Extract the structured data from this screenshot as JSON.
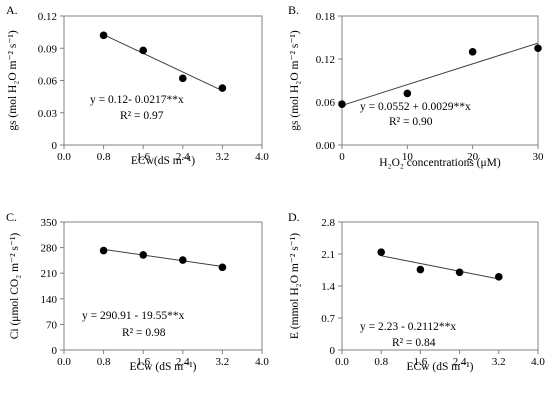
{
  "chart_data": [
    {
      "type": "scatter",
      "panel_label": "A.",
      "xlabel": "ECw(dS m⁻¹)",
      "ylabel": "gs (mol H₂O m⁻² s⁻¹)",
      "x": [
        0.8,
        1.6,
        2.4,
        3.2
      ],
      "y": [
        0.102,
        0.088,
        0.062,
        0.053
      ],
      "xlim": [
        0,
        4.0
      ],
      "ylim": [
        0,
        0.12
      ],
      "xticks": [
        "0.0",
        "0.8",
        "1.6",
        "2.4",
        "3.2",
        "4.0"
      ],
      "yticks": [
        "0",
        "0.03",
        "0.06",
        "0.09",
        "0.12"
      ],
      "trendline": {
        "intercept": 0.12,
        "slope": -0.0217
      },
      "equation": "y = 0.12- 0.0217**x",
      "r2": "R² = 0.97",
      "grid": false
    },
    {
      "type": "scatter",
      "panel_label": "B.",
      "xlabel": "H₂O₂ concentrations (μM)",
      "ylabel": "gs (mol H₂O m⁻² s⁻¹)",
      "x": [
        0,
        10,
        20,
        30
      ],
      "y": [
        0.057,
        0.072,
        0.13,
        0.135
      ],
      "xlim": [
        0,
        30
      ],
      "ylim": [
        0,
        0.18
      ],
      "xticks": [
        "0",
        "10",
        "20",
        "30"
      ],
      "yticks": [
        "0.00",
        "0.06",
        "0.12",
        "0.18"
      ],
      "trendline": {
        "intercept": 0.0552,
        "slope": 0.0029
      },
      "equation": "y = 0.0552 + 0.0029**x",
      "r2": "R² = 0.90",
      "grid": false
    },
    {
      "type": "scatter",
      "panel_label": "C.",
      "xlabel": "ECw (dS m⁻¹)",
      "ylabel": "Ci (μmol CO₂ m⁻² s⁻¹)",
      "x": [
        0.8,
        1.6,
        2.4,
        3.2
      ],
      "y": [
        272,
        260,
        246,
        226
      ],
      "xlim": [
        0,
        4.0
      ],
      "ylim": [
        0,
        350
      ],
      "xticks": [
        "0.0",
        "0.8",
        "1.6",
        "2.4",
        "3.2",
        "4.0"
      ],
      "yticks": [
        "0",
        "70",
        "140",
        "210",
        "280",
        "350"
      ],
      "trendline": {
        "intercept": 290.91,
        "slope": -19.55
      },
      "equation": "y = 290.91 - 19.55**x",
      "r2": "R² = 0.98",
      "grid": false
    },
    {
      "type": "scatter",
      "panel_label": "D.",
      "xlabel": "ECw (dS m⁻¹)",
      "ylabel": "E (mmol H₂O m⁻² s⁻¹)",
      "x": [
        0.8,
        1.6,
        2.4,
        3.2
      ],
      "y": [
        2.14,
        1.76,
        1.7,
        1.6
      ],
      "xlim": [
        0,
        4.0
      ],
      "ylim": [
        0,
        2.8
      ],
      "xticks": [
        "0.0",
        "0.8",
        "1.6",
        "2.4",
        "3.2",
        "4.0"
      ],
      "yticks": [
        "0",
        "0.7",
        "1.4",
        "2.1",
        "2.8"
      ],
      "trendline": {
        "intercept": 2.23,
        "slope": -0.2112
      },
      "equation": "y = 2.23 - 0.2112**x",
      "r2": "R² = 0.84",
      "grid": false
    }
  ]
}
